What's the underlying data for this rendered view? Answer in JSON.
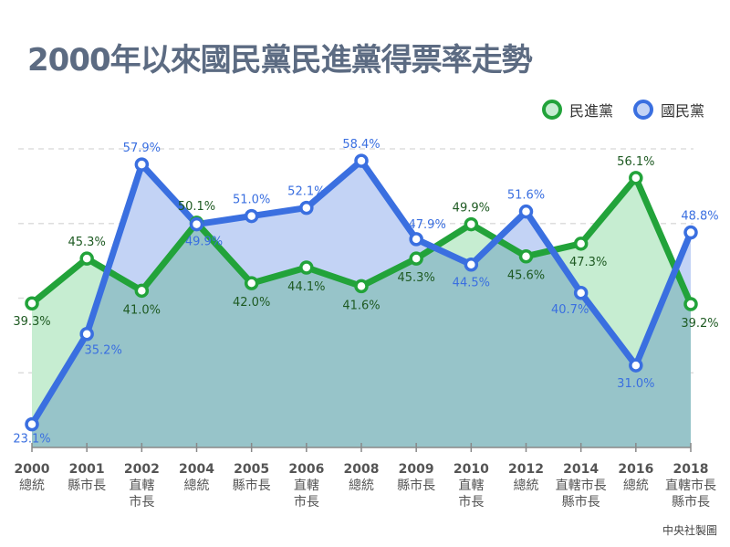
{
  "chart_data": {
    "type": "area",
    "title": "2000年以來國民黨民進黨得票率走勢",
    "categories": [
      {
        "year": "2000",
        "type": [
          "總統"
        ]
      },
      {
        "year": "2001",
        "type": [
          "縣市長"
        ]
      },
      {
        "year": "2002",
        "type": [
          "直轄",
          "市長"
        ]
      },
      {
        "year": "2004",
        "type": [
          "總統"
        ]
      },
      {
        "year": "2005",
        "type": [
          "縣市長"
        ]
      },
      {
        "year": "2006",
        "type": [
          "直轄",
          "市長"
        ]
      },
      {
        "year": "2008",
        "type": [
          "總統"
        ]
      },
      {
        "year": "2009",
        "type": [
          "縣市長"
        ]
      },
      {
        "year": "2010",
        "type": [
          "直轄",
          "市長"
        ]
      },
      {
        "year": "2012",
        "type": [
          "總統"
        ]
      },
      {
        "year": "2014",
        "type": [
          "直轄市長",
          "縣市長"
        ]
      },
      {
        "year": "2016",
        "type": [
          "總統"
        ]
      },
      {
        "year": "2018",
        "type": [
          "直轄市長",
          "縣市長"
        ]
      }
    ],
    "series": [
      {
        "name": "國民黨",
        "color": "#3a6fe0",
        "fill": "#c3d3f5",
        "values": [
          23.1,
          35.2,
          57.9,
          49.9,
          51.0,
          52.1,
          58.4,
          47.9,
          44.5,
          51.6,
          40.7,
          31.0,
          48.8
        ]
      },
      {
        "name": "民進黨",
        "color": "#22a33a",
        "fill": "#c6edd1",
        "values": [
          39.3,
          45.3,
          41.0,
          50.1,
          42.0,
          44.1,
          41.6,
          45.3,
          49.9,
          45.6,
          47.3,
          56.1,
          39.2
        ]
      }
    ],
    "ylim": [
      20,
      60
    ],
    "grid": true,
    "legend": "top-right",
    "label_format": "{v}%"
  },
  "credit": "中央社製圖"
}
